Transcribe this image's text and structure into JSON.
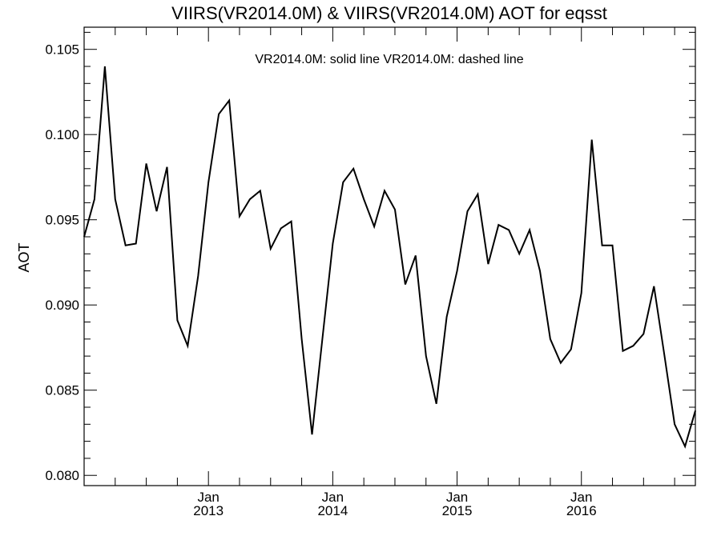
{
  "chart_data": {
    "type": "line",
    "title": "VIIRS(VR2014.0M) & VIIRS(VR2014.0M)  AOT for eqsst",
    "annotation": "VR2014.0M: solid line   VR2014.0M: dashed line",
    "ylabel": "AOT",
    "xlabel": "",
    "ylim": [
      0.0794,
      0.1063
    ],
    "y_ticks": [
      0.08,
      0.085,
      0.09,
      0.095,
      0.1,
      0.105
    ],
    "y_tick_labels": [
      "0.080",
      "0.085",
      "0.090",
      "0.095",
      "0.100",
      "0.105"
    ],
    "x_ticks": [
      {
        "month": "Jan",
        "year": "2013",
        "index": 12
      },
      {
        "month": "Jan",
        "year": "2014",
        "index": 24
      },
      {
        "month": "Jan",
        "year": "2015",
        "index": 36
      },
      {
        "month": "Jan",
        "year": "2016",
        "index": 48
      }
    ],
    "x_range": [
      0,
      59
    ],
    "grid": false,
    "series": [
      {
        "style": "solid",
        "values": [
          0.094,
          0.0962,
          0.104,
          0.0962,
          0.0935,
          0.0936,
          0.0983,
          0.0955,
          0.0981,
          0.0891,
          0.0876,
          0.0917,
          0.0972,
          0.1012,
          0.102,
          0.0952,
          0.0962,
          0.0967,
          0.0933,
          0.0945,
          0.0949,
          0.088,
          0.0824,
          0.088,
          0.0936,
          0.0972,
          0.098,
          0.0962,
          0.0946,
          0.0967,
          0.0956,
          0.0912,
          0.0929,
          0.087,
          0.0842,
          0.0893,
          0.092,
          0.0955,
          0.0965,
          0.0924,
          0.0947,
          0.0944,
          0.093,
          0.0944,
          0.092,
          0.088,
          0.0866,
          0.0874,
          0.0907,
          0.0997,
          0.0935,
          0.0935,
          0.0873,
          0.0876,
          0.0883,
          0.0911,
          0.0871,
          0.083,
          0.0817,
          0.0838
        ]
      }
    ]
  }
}
